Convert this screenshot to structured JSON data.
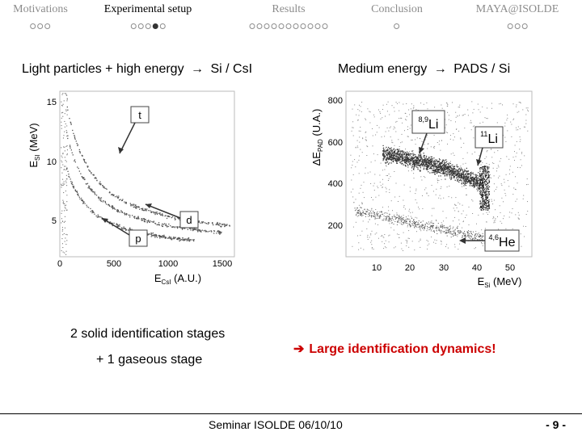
{
  "nav": [
    {
      "title": "Motivations",
      "dots": 3,
      "filled": -1,
      "active": false
    },
    {
      "title": "Experimental setup",
      "dots": 5,
      "filled": 3,
      "active": true
    },
    {
      "title": "Results",
      "dots": 11,
      "filled": -1,
      "active": false
    },
    {
      "title": "Conclusion",
      "dots": 1,
      "filled": -1,
      "active": false
    },
    {
      "title": "MAYA@ISOLDE",
      "dots": 3,
      "filled": -1,
      "active": false
    }
  ],
  "left": {
    "heading_a": "Light particles + high energy",
    "heading_b": "Si / CsI",
    "plot": {
      "ylabel": "E",
      "ylabel_sub": "SI",
      "ylabel_unit": "(MeV)",
      "xlabel": "E",
      "xlabel_sub": "CsI",
      "xlabel_unit": "(A.U.)",
      "xticks": [
        "0",
        "500",
        "1000",
        "1500"
      ],
      "yticks": [
        "5",
        "10",
        "15"
      ],
      "labels": {
        "t": "t",
        "d": "d",
        "p": "p"
      }
    }
  },
  "right": {
    "heading_a": "Medium energy",
    "heading_b": "PADS / Si",
    "plot": {
      "ylabel": "ΔE",
      "ylabel_sub": "PAD",
      "ylabel_unit": "(U.A.)",
      "xlabel": "E",
      "xlabel_sub": "Si",
      "xlabel_unit": "(MeV)",
      "xticks": [
        "10",
        "20",
        "30",
        "40",
        "50"
      ],
      "yticks": [
        "200",
        "400",
        "600",
        "800"
      ],
      "labels": {
        "li89_sup": "8,9",
        "li89": "Li",
        "li11_sup": "11",
        "li11": "Li",
        "he46_sup": "4,6",
        "he46": "He"
      }
    }
  },
  "caption1": "2 solid identification stages",
  "caption2": "+ 1 gaseous stage",
  "highlight": "Large identification dynamics!",
  "footer": "Seminar ISOLDE 06/10/10",
  "slide_number": "- 9 -"
}
